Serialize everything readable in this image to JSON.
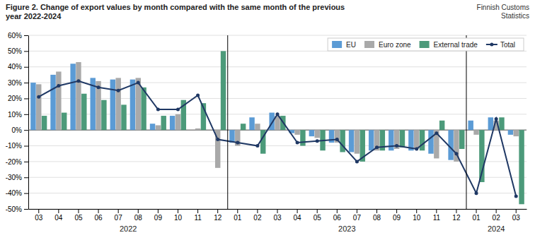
{
  "chart_data": {
    "type": "bar",
    "title": "Figure 2. Change of export values by month compared with the same month of the previous\nyear 2022-2024",
    "annotations": [
      {
        "text": "Finnish Customs\nStatistics"
      }
    ],
    "categories": [
      "03",
      "04",
      "05",
      "06",
      "07",
      "08",
      "09",
      "10",
      "11",
      "12",
      "01",
      "02",
      "03",
      "04",
      "05",
      "06",
      "07",
      "08",
      "09",
      "10",
      "11",
      "12",
      "01",
      "02",
      "03"
    ],
    "series": [
      {
        "name": "EU",
        "color": "#5B9BD5",
        "values": [
          30,
          35,
          42,
          33,
          32,
          32,
          4,
          9,
          0,
          0,
          -8,
          8,
          11,
          -2,
          -4,
          -8,
          -14,
          -13,
          -13,
          -13,
          -15,
          -19,
          6,
          8,
          -3
        ]
      },
      {
        "name": "Euro zone",
        "color": "#A9A9A9",
        "values": [
          29,
          37,
          43,
          31,
          33,
          33,
          3,
          10,
          1,
          -24,
          -10,
          4,
          9,
          -3,
          -5,
          -8,
          -15,
          -13,
          -12,
          -12,
          -18,
          -20,
          -3,
          6,
          -4
        ]
      },
      {
        "name": "External trade",
        "color": "#4C9A7A",
        "values": [
          9,
          11,
          23,
          19,
          16,
          27,
          9,
          19,
          17,
          50,
          4,
          -15,
          9,
          -10,
          -13,
          -14,
          -20,
          -13,
          -11,
          -13,
          6,
          -12,
          -33,
          8,
          -47
        ]
      },
      {
        "name": "Total",
        "type": "line",
        "color": "#1F3864",
        "marker": "circle",
        "values": [
          21,
          28,
          31,
          27,
          25,
          30,
          13,
          13,
          22,
          -6,
          -8,
          -10,
          10,
          -8,
          -7,
          -6,
          -20,
          -11,
          -10,
          -12,
          -2,
          -15,
          -40,
          7,
          -42
        ]
      }
    ],
    "ylim": [
      -50,
      60
    ],
    "yticks": [
      {
        "value": -50,
        "label": "-50%"
      },
      {
        "value": -40,
        "label": "-40%"
      },
      {
        "value": -30,
        "label": "-30%"
      },
      {
        "value": -20,
        "label": "-20%"
      },
      {
        "value": -10,
        "label": "-10%"
      },
      {
        "value": 0,
        "label": "0%"
      },
      {
        "value": 10,
        "label": "10%"
      },
      {
        "value": 20,
        "label": "20%"
      },
      {
        "value": 30,
        "label": "30%"
      },
      {
        "value": 40,
        "label": "40%"
      },
      {
        "value": 50,
        "label": "50%"
      },
      {
        "value": 60,
        "label": "60%"
      }
    ],
    "grid": true,
    "legend": "upper right",
    "year_labels": [
      {
        "label": "2022",
        "x": 4.5
      },
      {
        "label": "2023",
        "x": 15.5
      },
      {
        "label": "2024",
        "x": 23.0
      }
    ],
    "year_separators": [
      9.5,
      21.5
    ]
  }
}
